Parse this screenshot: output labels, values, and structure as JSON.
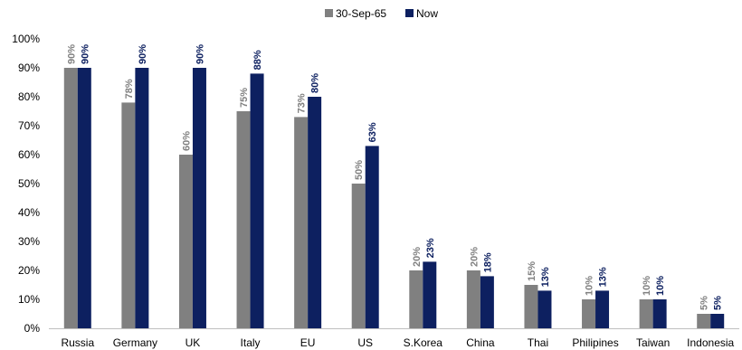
{
  "chart_data": {
    "type": "bar",
    "categories": [
      "Russia",
      "Germany",
      "UK",
      "Italy",
      "EU",
      "US",
      "S.Korea",
      "China",
      "Thai",
      "Philipines",
      "Taiwan",
      "Indonesia"
    ],
    "series": [
      {
        "name": "30-Sep-65",
        "color": "#808080",
        "values": [
          90,
          78,
          60,
          75,
          73,
          50,
          20,
          20,
          15,
          10,
          10,
          5
        ],
        "labels": [
          "90%",
          "78%",
          "60%",
          "75%",
          "73%",
          "50%",
          "20%",
          "20%",
          "15%",
          "10%",
          "10%",
          "5%"
        ]
      },
      {
        "name": "Now",
        "color": "#0d2060",
        "values": [
          90,
          90,
          90,
          88,
          80,
          63,
          23,
          18,
          13,
          13,
          10,
          5
        ],
        "labels": [
          "90%",
          "90%",
          "90%",
          "88%",
          "80%",
          "63%",
          "23%",
          "18%",
          "13%",
          "13%",
          "10%",
          "5%"
        ]
      }
    ],
    "ylim": [
      0,
      100
    ],
    "yticks": [
      "0%",
      "10%",
      "20%",
      "30%",
      "40%",
      "50%",
      "60%",
      "70%",
      "80%",
      "90%",
      "100%"
    ],
    "grid": false,
    "legend_position": "top-center",
    "data_labels": "vertical, above bars"
  }
}
